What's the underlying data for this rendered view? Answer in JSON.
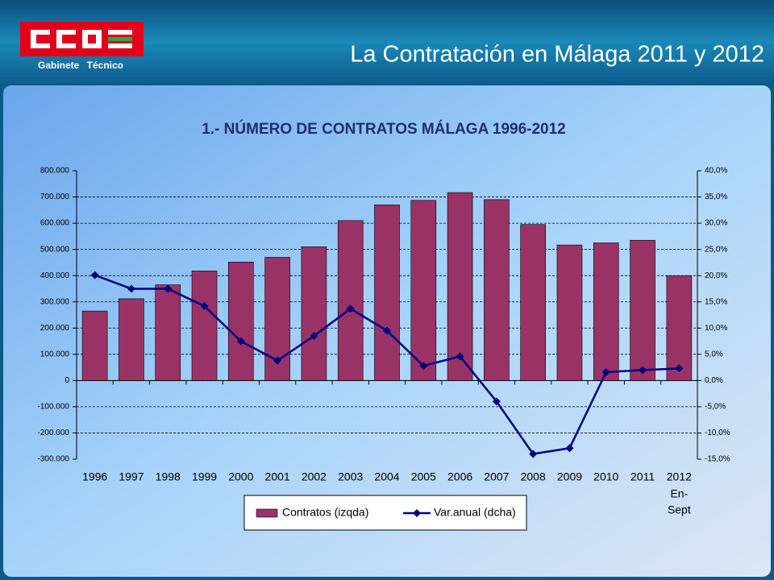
{
  "header": {
    "subtitle": "Gabinete Técnico",
    "title": "La Contratación en Málaga 2011 y 2012"
  },
  "chart_data": {
    "type": "bar",
    "title": "1.- NÚMERO DE CONTRATOS MÁLAGA 1996-2012",
    "categories": [
      "1996",
      "1997",
      "1998",
      "1999",
      "2000",
      "2001",
      "2002",
      "2003",
      "2004",
      "2005",
      "2006",
      "2007",
      "2008",
      "2009",
      "2010",
      "2011",
      "2012"
    ],
    "annotations": [
      "En-",
      "Sept"
    ],
    "series": [
      {
        "name": "Contratos (izqda)",
        "type": "bar",
        "color": "#993366",
        "values": [
          265000,
          312000,
          365000,
          418000,
          452000,
          470000,
          510000,
          610000,
          670000,
          687000,
          717000,
          690000,
          595000,
          517000,
          525000,
          535000,
          400000
        ]
      },
      {
        "name": "Var.anual (dcha)",
        "type": "line",
        "axis": "y2",
        "color": "#000080",
        "values": [
          20.1,
          17.5,
          17.5,
          14.2,
          7.5,
          3.8,
          8.5,
          13.7,
          9.5,
          2.8,
          4.6,
          -4.0,
          -14.0,
          -12.9,
          1.6,
          2.0,
          2.3
        ]
      }
    ],
    "ylim": [
      -300000,
      800000
    ],
    "yticks": [
      {
        "value": -300000,
        "label": "-300.000"
      },
      {
        "value": -200000,
        "label": "-200.000"
      },
      {
        "value": -100000,
        "label": "-100.000"
      },
      0,
      {
        "value": 100000,
        "label": "100.000"
      },
      {
        "value": 200000,
        "label": "200.000"
      },
      {
        "value": 300000,
        "label": "300.000"
      },
      {
        "value": 400000,
        "label": "400.000"
      },
      {
        "value": 500000,
        "label": "500.000"
      },
      {
        "value": 600000,
        "label": "600.000"
      },
      {
        "value": 700000,
        "label": "700.000"
      },
      {
        "value": 800000,
        "label": "800.000"
      }
    ],
    "y2lim": [
      -15,
      40
    ],
    "y2ticks": [
      {
        "value": -15,
        "label": "-15,0%"
      },
      {
        "value": -10,
        "label": "-10,0%"
      },
      {
        "value": -5,
        "label": "-5,0%"
      },
      {
        "value": 0,
        "label": "0,0%"
      },
      {
        "value": 5,
        "label": "5,0%"
      },
      {
        "value": 10,
        "label": "10,0%"
      },
      {
        "value": 15,
        "label": "15,0%"
      },
      {
        "value": 20,
        "label": "20,0%"
      },
      {
        "value": 25,
        "label": "25,0%"
      },
      {
        "value": 30,
        "label": "30,0%"
      },
      {
        "value": 35,
        "label": "35,0%"
      },
      {
        "value": 40,
        "label": "40,0%"
      }
    ],
    "grid": true,
    "legend": "bottom"
  }
}
